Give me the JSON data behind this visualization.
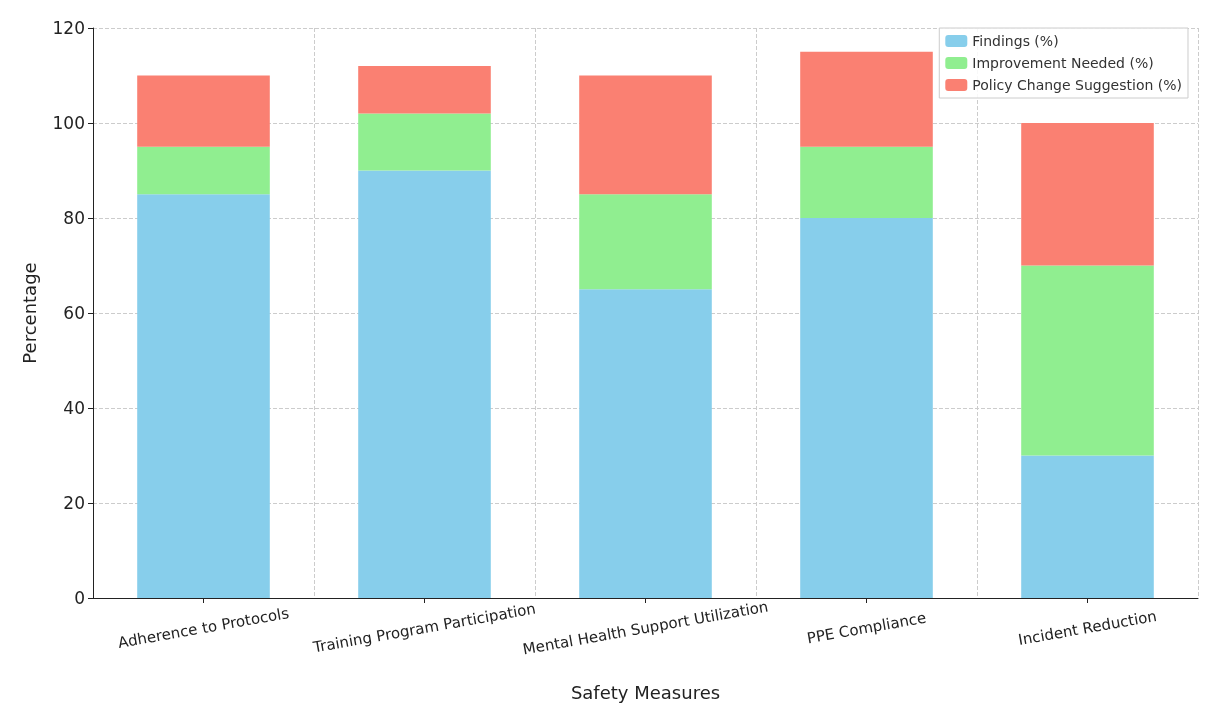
{
  "chart_data": {
    "type": "bar",
    "stacked": true,
    "xlabel": "Safety Measures",
    "ylabel": "Percentage",
    "categories": [
      "Adherence to Protocols",
      "Training Program Participation",
      "Mental Health Support Utilization",
      "PPE Compliance",
      "Incident Reduction"
    ],
    "series": [
      {
        "name": "Findings (%)",
        "color": "#87ceeb",
        "values": [
          85,
          90,
          65,
          80,
          30
        ]
      },
      {
        "name": "Improvement Needed (%)",
        "color": "#90ee90",
        "values": [
          10,
          12,
          20,
          15,
          40
        ]
      },
      {
        "name": "Policy Change Suggestion (%)",
        "color": "#fa8072",
        "values": [
          15,
          10,
          25,
          20,
          30
        ]
      }
    ],
    "ylim": [
      0,
      120
    ],
    "yticks": [
      0,
      20,
      40,
      60,
      80,
      100,
      120
    ],
    "grid": true,
    "legend": "top right"
  }
}
